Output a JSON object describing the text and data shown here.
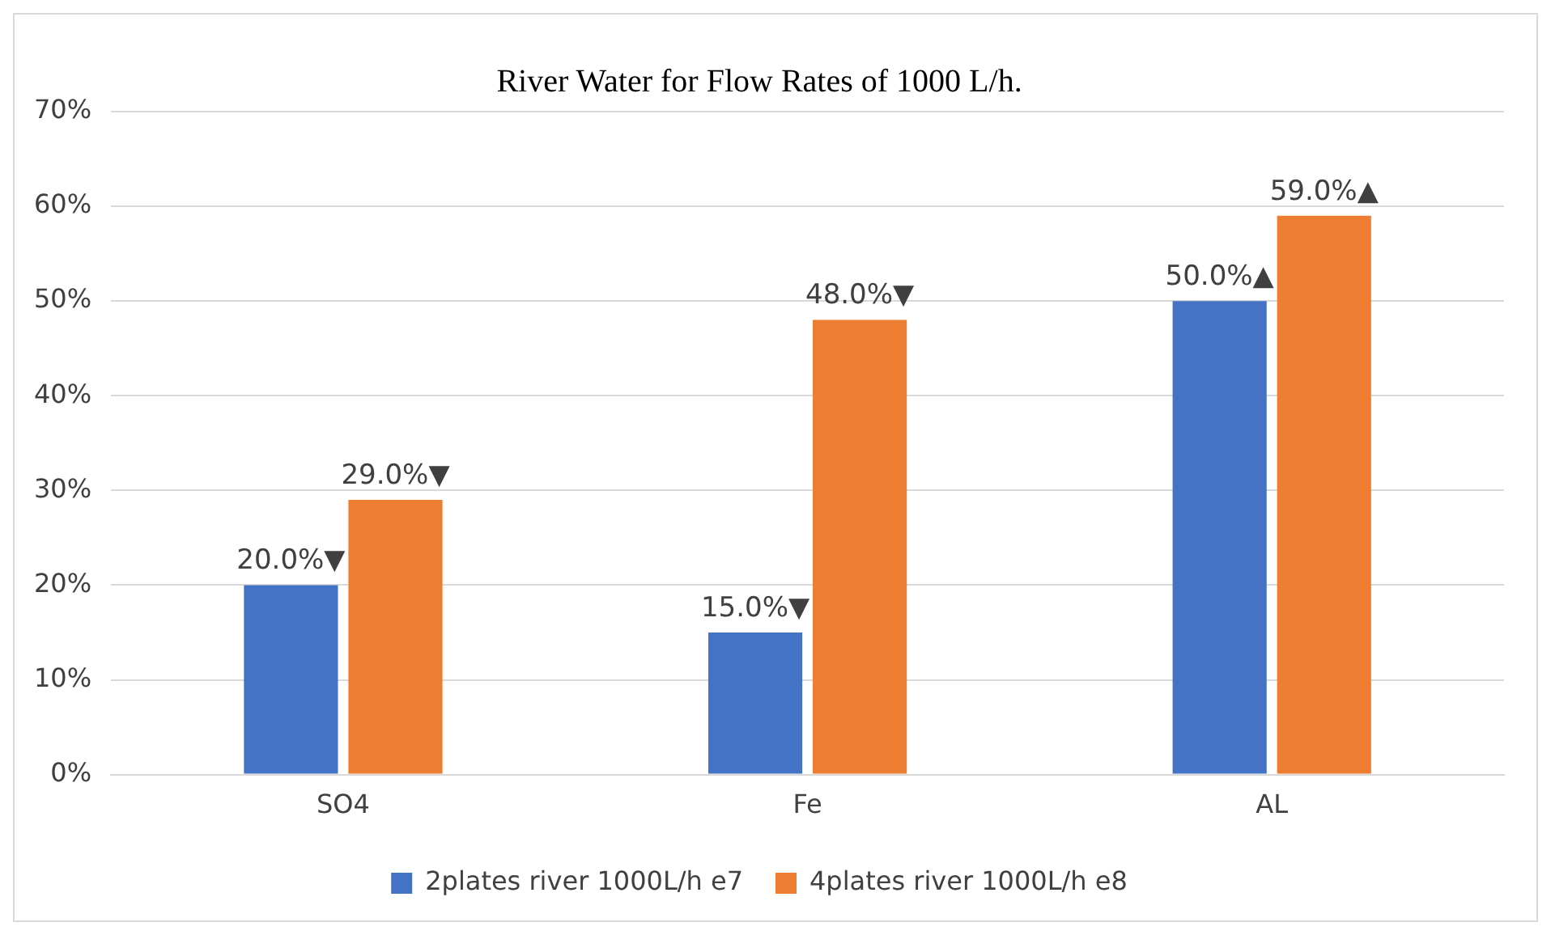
{
  "chart_data": {
    "type": "bar",
    "title": "River Water for Flow Rates of 1000 L/h.",
    "categories": [
      "SO4",
      "Fe",
      "AL"
    ],
    "series": [
      {
        "name": "2plates river 1000L/h e7",
        "color": "#4472c4",
        "values": [
          20,
          15,
          50
        ],
        "value_labels": [
          "20.0%▼",
          "15.0%▼",
          "50.0%▲"
        ]
      },
      {
        "name": "4plates river 1000L/h e8",
        "color": "#ed7d31",
        "values": [
          29,
          48,
          59
        ],
        "value_labels": [
          "29.0%▼",
          "48.0%▼",
          "59.0%▲"
        ]
      }
    ],
    "ylim": [
      0,
      70
    ],
    "yticks": [
      {
        "value": 0,
        "label": "0%"
      },
      {
        "value": 10,
        "label": "10%"
      },
      {
        "value": 20,
        "label": "20%"
      },
      {
        "value": 30,
        "label": "30%"
      },
      {
        "value": 40,
        "label": "40%"
      },
      {
        "value": 50,
        "label": "50%"
      },
      {
        "value": 60,
        "label": "60%"
      },
      {
        "value": 70,
        "label": "70%"
      }
    ],
    "grid": "y",
    "legend": "bottom"
  }
}
